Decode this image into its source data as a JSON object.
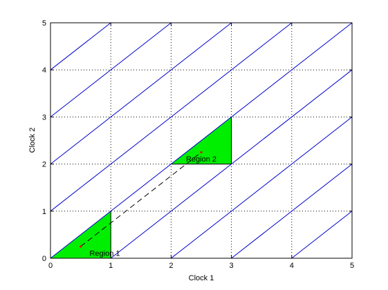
{
  "chart_data": {
    "type": "line",
    "xlabel": "Clock 1",
    "ylabel": "Clock 2",
    "xlim": [
      0,
      5
    ],
    "ylim": [
      0,
      5
    ],
    "xticks": [
      "0",
      "1",
      "2",
      "3",
      "4",
      "5"
    ],
    "yticks": [
      "0",
      "1",
      "2",
      "3",
      "4",
      "5"
    ],
    "grid": "dotted",
    "diagonal_lines": {
      "color": "#0000cc",
      "slope": 1,
      "intercepts": [
        -4,
        -3,
        -2,
        -1,
        0,
        1,
        2,
        3,
        4
      ]
    },
    "regions": [
      {
        "label": "Region 1",
        "fill": "#00ee00",
        "polygon": [
          [
            0,
            0
          ],
          [
            1,
            0
          ],
          [
            1,
            1
          ]
        ],
        "point": [
          0.5,
          0.25
        ],
        "label_at": [
          0.9,
          0.05
        ]
      },
      {
        "label": "Region 2",
        "fill": "#00ee00",
        "polygon": [
          [
            2,
            2
          ],
          [
            3,
            2
          ],
          [
            3,
            3
          ]
        ],
        "point": [
          2.5,
          2.25
        ],
        "label_at": [
          2.5,
          2.05
        ]
      }
    ],
    "trajectory": {
      "style": "dashed",
      "color": "#000000",
      "points": [
        [
          0.5,
          0.25
        ],
        [
          2.5,
          2.25
        ]
      ]
    },
    "point_color": "#ff0000"
  }
}
